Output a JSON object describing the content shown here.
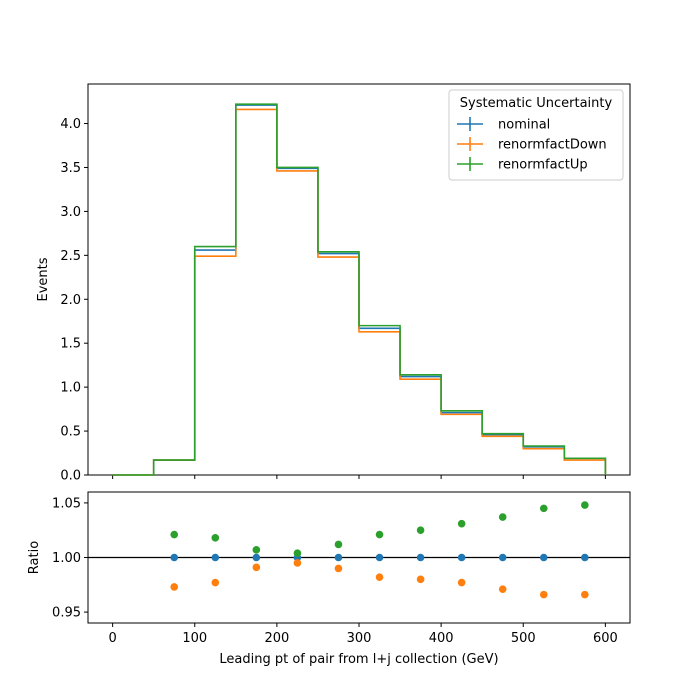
{
  "chart_data": [
    {
      "type": "step",
      "title": "",
      "xlabel": "",
      "ylabel": "Events",
      "xlim": [
        -30,
        630
      ],
      "ylim": [
        0,
        4.45
      ],
      "yticks": [
        0.0,
        0.5,
        1.0,
        1.5,
        2.0,
        2.5,
        3.0,
        3.5,
        4.0
      ],
      "ytick_labels": [
        "0.0",
        "0.5",
        "1.0",
        "1.5",
        "2.0",
        "2.5",
        "3.0",
        "3.5",
        "4.0"
      ],
      "xticks": [
        0,
        100,
        200,
        300,
        400,
        500,
        600
      ],
      "bin_edges": [
        0,
        50,
        100,
        150,
        200,
        250,
        300,
        350,
        400,
        450,
        500,
        550,
        600
      ],
      "legend": {
        "title": "Systematic Uncertainty",
        "placement": "top-right"
      },
      "series": [
        {
          "name": "nominal",
          "color": "#1f77b4",
          "values": [
            0.0,
            0.17,
            2.56,
            4.21,
            3.49,
            2.52,
            1.67,
            1.12,
            0.71,
            0.46,
            0.32,
            0.19
          ]
        },
        {
          "name": "renormfactDown",
          "color": "#ff7f0e",
          "values": [
            0.0,
            0.17,
            2.49,
            4.16,
            3.46,
            2.48,
            1.63,
            1.09,
            0.69,
            0.44,
            0.3,
            0.17
          ]
        },
        {
          "name": "renormfactUp",
          "color": "#2ca02c",
          "values": [
            0.0,
            0.17,
            2.6,
            4.22,
            3.5,
            2.54,
            1.7,
            1.14,
            0.73,
            0.47,
            0.33,
            0.19
          ]
        }
      ]
    },
    {
      "type": "scatter",
      "title": "",
      "xlabel": "Leading pt of pair from l+j collection (GeV)",
      "ylabel": "Ratio",
      "xlim": [
        -30,
        630
      ],
      "ylim": [
        0.94,
        1.06
      ],
      "yticks": [
        0.95,
        1.0,
        1.05
      ],
      "ytick_labels": [
        "0.95",
        "1.00",
        "1.05"
      ],
      "xticks": [
        0,
        100,
        200,
        300,
        400,
        500,
        600
      ],
      "xtick_labels": [
        "0",
        "100",
        "200",
        "300",
        "400",
        "500",
        "600"
      ],
      "reference_line": 1.0,
      "x": [
        75,
        125,
        175,
        225,
        275,
        325,
        375,
        425,
        475,
        525,
        575
      ],
      "series": [
        {
          "name": "nominal",
          "color": "#1f77b4",
          "values": [
            1.0,
            1.0,
            1.0,
            1.0,
            1.0,
            1.0,
            1.0,
            1.0,
            1.0,
            1.0,
            1.0
          ]
        },
        {
          "name": "renormfactDown",
          "color": "#ff7f0e",
          "values": [
            0.973,
            0.977,
            0.991,
            0.995,
            0.99,
            0.982,
            0.98,
            0.977,
            0.971,
            0.966,
            0.966
          ]
        },
        {
          "name": "renormfactUp",
          "color": "#2ca02c",
          "values": [
            1.021,
            1.018,
            1.007,
            1.004,
            1.012,
            1.021,
            1.025,
            1.031,
            1.037,
            1.045,
            1.048
          ]
        }
      ]
    }
  ]
}
